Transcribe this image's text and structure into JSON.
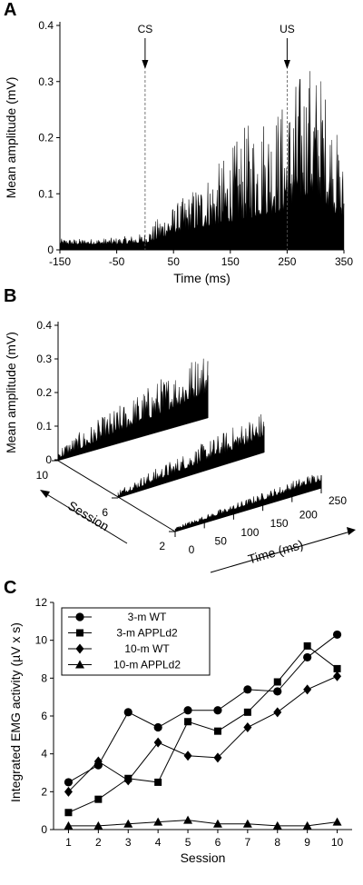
{
  "panels": {
    "A": "A",
    "B": "B",
    "C": "C"
  },
  "chart_data": [
    {
      "id": "A",
      "type": "bar",
      "description_type": "EMG amplitude trace",
      "xlabel": "Time (ms)",
      "ylabel": "Mean amplitude (mV)",
      "xlim": [
        -150,
        350
      ],
      "ylim": [
        0,
        0.4
      ],
      "xticks": [
        -150,
        -50,
        50,
        150,
        250,
        350
      ],
      "yticks": [
        0,
        0.1,
        0.2,
        0.3,
        0.4
      ],
      "annotations": [
        {
          "label": "CS",
          "x": 0
        },
        {
          "label": "US",
          "x": 250
        }
      ],
      "envelope": {
        "x": [
          -150,
          -100,
          -50,
          0,
          25,
          50,
          75,
          100,
          125,
          150,
          175,
          200,
          225,
          250,
          270,
          290,
          310,
          330,
          350
        ],
        "baseline": [
          0.01,
          0.01,
          0.01,
          0.012,
          0.02,
          0.03,
          0.035,
          0.04,
          0.045,
          0.05,
          0.055,
          0.06,
          0.065,
          0.07,
          0.09,
          0.1,
          0.09,
          0.07,
          0.05
        ],
        "peak": [
          0.02,
          0.02,
          0.022,
          0.03,
          0.06,
          0.08,
          0.1,
          0.13,
          0.15,
          0.18,
          0.22,
          0.25,
          0.26,
          0.27,
          0.32,
          0.34,
          0.32,
          0.25,
          0.15
        ]
      }
    },
    {
      "id": "B",
      "type": "area",
      "description_type": "3D stacked EMG traces by session",
      "xlabel": "Time (ms)",
      "ylabel": "Mean amplitude (mV)",
      "zlabel": "Session",
      "xticks": [
        0,
        50,
        100,
        150,
        200,
        250
      ],
      "yticks": [
        0,
        0.1,
        0.2,
        0.3,
        0.4
      ],
      "zticks": [
        10,
        6,
        2
      ]
    },
    {
      "id": "C",
      "type": "line",
      "xlabel": "Session",
      "ylabel": "Integrated EMG activity  (µV x s)",
      "xlim": [
        0.5,
        10.5
      ],
      "ylim": [
        0,
        12
      ],
      "xticks": [
        1,
        2,
        3,
        4,
        5,
        6,
        7,
        8,
        9,
        10
      ],
      "yticks": [
        0,
        2,
        4,
        6,
        8,
        10,
        12
      ],
      "legend_position": "top-left",
      "x": [
        1,
        2,
        3,
        4,
        5,
        6,
        7,
        8,
        9,
        10
      ],
      "series": [
        {
          "name": "3-m WT",
          "marker": "circle",
          "values": [
            2.5,
            3.4,
            6.2,
            5.4,
            6.3,
            6.3,
            7.4,
            7.3,
            9.1,
            10.3
          ]
        },
        {
          "name": "3-m APPLd2",
          "marker": "square",
          "values": [
            0.9,
            1.6,
            2.7,
            2.5,
            5.7,
            5.2,
            6.2,
            7.8,
            9.7,
            8.5
          ]
        },
        {
          "name": "10-m WT",
          "marker": "diamond",
          "values": [
            2.0,
            3.6,
            2.6,
            4.6,
            3.9,
            3.8,
            5.4,
            6.2,
            7.4,
            8.1
          ]
        },
        {
          "name": "10-m APPLd2",
          "marker": "triangle",
          "values": [
            0.2,
            0.2,
            0.3,
            0.4,
            0.5,
            0.3,
            0.3,
            0.2,
            0.2,
            0.4
          ]
        }
      ]
    }
  ]
}
